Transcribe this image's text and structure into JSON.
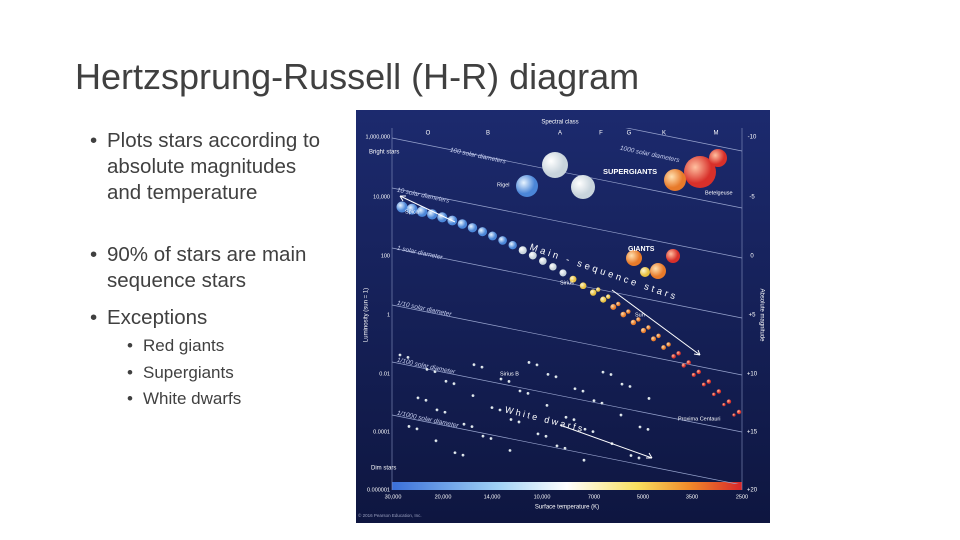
{
  "slide": {
    "title": "Hertzsprung-Russell (H-R) diagram",
    "bullets": [
      {
        "text": "Plots stars according to absolute magnitudes and temperature"
      },
      {
        "text": "90% of stars are main sequence stars"
      },
      {
        "text": "Exceptions",
        "sub": [
          "Red giants",
          "Supergiants",
          "White dwarfs"
        ]
      }
    ]
  },
  "figure": {
    "spectral_class_title": "Spectral class",
    "spectral_classes": [
      "O",
      "B",
      "A",
      "F",
      "G",
      "K",
      "M"
    ],
    "luminosity_axis_title": "Luminosity (sun = 1)",
    "luminosity_labels": [
      "1,000,000",
      "10,000",
      "100",
      "1",
      "0.01",
      "0.0001",
      "0.000001"
    ],
    "magnitude_axis_title": "Absolute magnitude",
    "magnitude_labels": [
      "-10",
      "-5",
      "0",
      "+5",
      "+10",
      "+15",
      "+20"
    ],
    "temperature_axis_title": "Surface temperature (K)",
    "temperature_labels": [
      "30,000",
      "20,000",
      "14,000",
      "10,000",
      "7000",
      "5000",
      "3500",
      "2500"
    ],
    "bright_label": "Bright stars",
    "dim_label": "Dim stars",
    "diameter_labels": [
      "1000 solar diameters",
      "100 solar diameters",
      "10 solar diameters",
      "1 solar diameter",
      "1/10 solar diameter",
      "1/100 solar diameter",
      "1/1000 solar diameter"
    ],
    "regions": [
      "SUPERGIANTS",
      "GIANTS",
      "Main - sequence stars",
      "White dwarfs"
    ],
    "stars": [
      "Rigel",
      "Betelgeuse",
      "Spica",
      "Sirius",
      "Sun",
      "Sirius B",
      "Proxima Centauri"
    ],
    "credit": "© 2016 Pearson Education, Inc."
  }
}
